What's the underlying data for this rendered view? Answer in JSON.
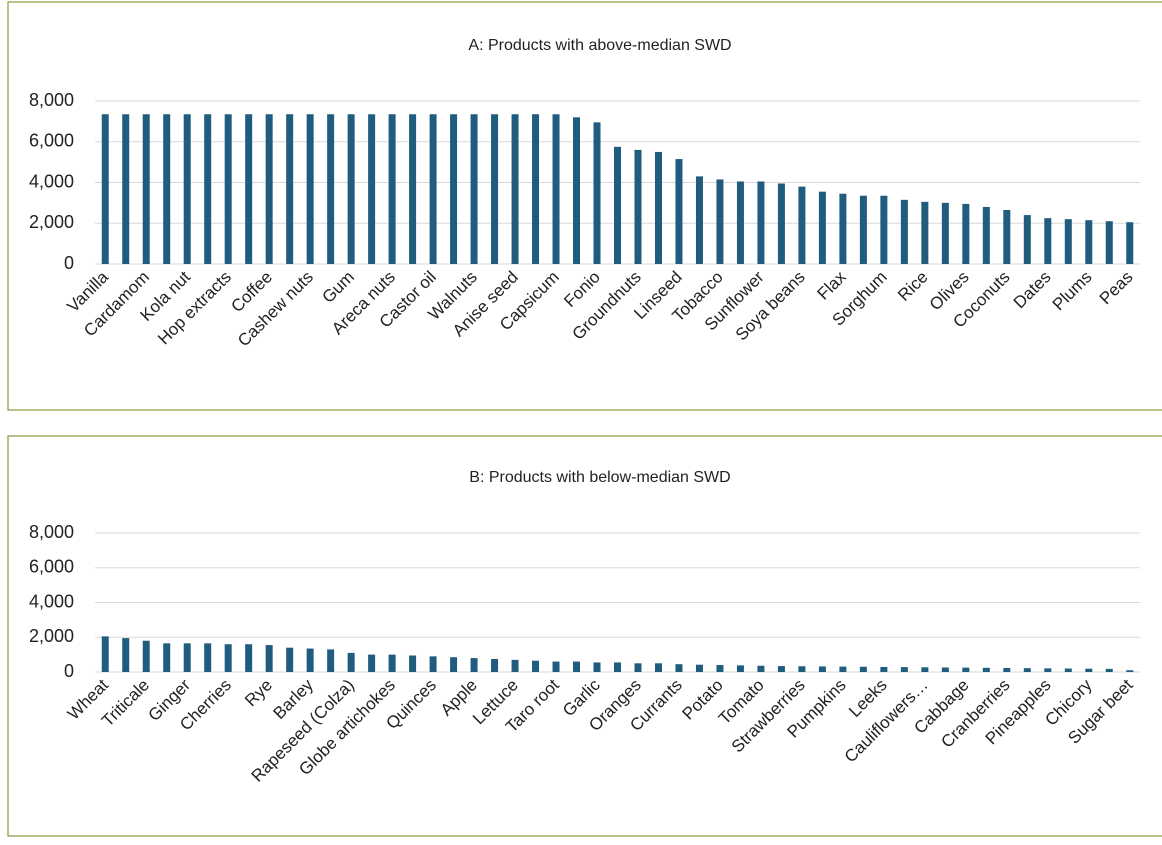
{
  "chart_data": [
    {
      "type": "bar",
      "title": "A: Products with above-median SWD",
      "categories": [
        "Vanilla",
        null,
        "Cardamom",
        null,
        "Kola nut",
        null,
        "Hop extracts",
        null,
        "Coffee",
        null,
        "Cashew nuts",
        null,
        "Gum",
        null,
        "Areca nuts",
        null,
        "Castor oil",
        null,
        "Walnuts",
        null,
        "Anise seed",
        null,
        "Capsicum",
        null,
        "Fonio",
        null,
        "Groundnuts",
        null,
        "Linseed",
        null,
        "Tobacco",
        null,
        "Sunflower",
        null,
        "Soya beans",
        null,
        "Flax",
        null,
        "Sorghum",
        null,
        "Rice",
        null,
        "Olives",
        null,
        "Coconuts",
        null,
        "Dates",
        null,
        "Plums",
        null,
        "Peas"
      ],
      "values": [
        7350,
        7350,
        7350,
        7350,
        7350,
        7350,
        7350,
        7350,
        7350,
        7350,
        7350,
        7350,
        7350,
        7350,
        7350,
        7350,
        7350,
        7350,
        7350,
        7350,
        7350,
        7350,
        7350,
        7200,
        6950,
        5750,
        5600,
        5500,
        5150,
        4300,
        4150,
        4050,
        4050,
        3950,
        3800,
        3550,
        3450,
        3350,
        3350,
        3150,
        3050,
        3000,
        2950,
        2800,
        2650,
        2400,
        2250,
        2200,
        2150,
        2100,
        2050
      ],
      "color": "#1f5c7e",
      "ylim": [
        0,
        8000
      ],
      "yticks": [
        0,
        {
          "value": 2000,
          "label": "2,000"
        },
        {
          "value": 4000,
          "label": "4,000"
        },
        {
          "value": 6000,
          "label": "6,000"
        },
        {
          "value": 8000,
          "label": "8,000"
        }
      ],
      "grid": true
    },
    {
      "type": "bar",
      "title": "B: Products with below-median SWD",
      "categories": [
        "Wheat",
        null,
        "Triticale",
        null,
        "Ginger",
        null,
        "Cherries",
        null,
        "Rye",
        null,
        "Barley",
        null,
        "Rapeseed (Colza)",
        null,
        "Globe artichokes",
        null,
        "Quinces",
        null,
        "Apple",
        null,
        "Lettuce",
        null,
        "Taro root",
        null,
        "Garlic",
        null,
        "Oranges",
        null,
        "Currants",
        null,
        "Potato",
        null,
        "Tomato",
        null,
        "Strawberries",
        null,
        "Pumpkins",
        null,
        "Leeks",
        null,
        "Cauliflowers…",
        null,
        "Cabbage",
        null,
        "Cranberries",
        null,
        "Pineapples",
        null,
        "Chicory",
        null,
        "Sugar beet"
      ],
      "values": [
        2050,
        1950,
        1800,
        1650,
        1650,
        1650,
        1600,
        1600,
        1550,
        1400,
        1350,
        1300,
        1100,
        1000,
        1000,
        950,
        900,
        850,
        800,
        750,
        700,
        650,
        600,
        600,
        550,
        550,
        500,
        500,
        450,
        420,
        400,
        380,
        360,
        340,
        330,
        320,
        310,
        300,
        290,
        280,
        270,
        260,
        250,
        240,
        230,
        220,
        210,
        200,
        190,
        180,
        100
      ],
      "color": "#1f5c7e",
      "ylim": [
        0,
        8000
      ],
      "yticks": [
        0,
        {
          "value": 2000,
          "label": "2,000"
        },
        {
          "value": 4000,
          "label": "4,000"
        },
        {
          "value": 6000,
          "label": "6,000"
        },
        {
          "value": 8000,
          "label": "8,000"
        }
      ],
      "grid": true
    }
  ]
}
